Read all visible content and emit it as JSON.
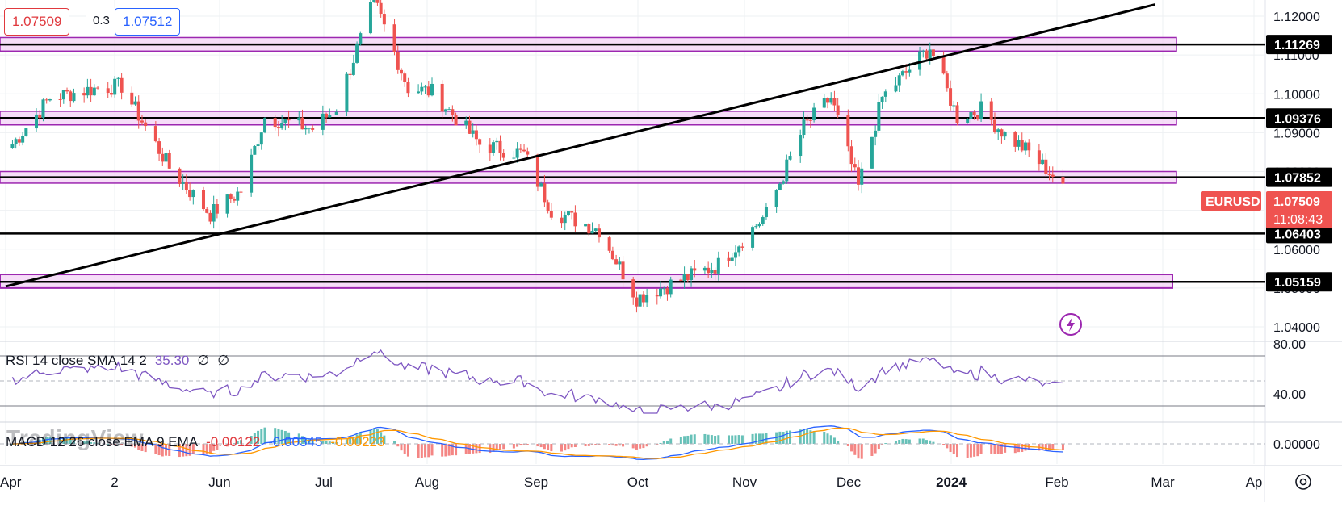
{
  "header": {
    "bid": "1.07509",
    "spread": "0.3",
    "ask": "1.07512"
  },
  "watermark": "TradingView",
  "symbol_tag": "EURUSD",
  "last_price": "1.07509",
  "countdown": "11:08:43",
  "rsi_legend": {
    "name": "RSI 14 close SMA 14 2",
    "value": "35.30",
    "extra1": "∅",
    "extra2": "∅"
  },
  "macd_legend": {
    "name": "MACD 12 26 close EMA 9 EMA",
    "hist": "-0.00122",
    "macd": "-0.00345",
    "signal": "-0.00223"
  },
  "colors": {
    "up": "#26a69a",
    "down": "#ef5350",
    "zone_fill": "#f3d2f6",
    "zone_border": "#9c27b0",
    "rsi": "#7e57c2",
    "macd": "#2962ff",
    "signal": "#ff9800",
    "price_tag": "#ef5350"
  },
  "chart_data": {
    "type": "candlestick",
    "symbol": "EURUSD",
    "timeframe": "daily",
    "x_tick_labels": [
      "Apr",
      "2",
      "Jun",
      "Jul",
      "Aug",
      "Sep",
      "Oct",
      "Nov",
      "Dec",
      "2024",
      "Feb",
      "Mar",
      "Ap"
    ],
    "x_range": [
      "2023-04-01",
      "2024-04-01"
    ],
    "y_tick_labels": [
      "1.12000",
      "1.11000",
      "1.10000",
      "1.09000",
      "1.08000",
      "1.07000",
      "1.06000",
      "1.05000",
      "1.04000"
    ],
    "y_range": [
      1.0365,
      1.1275
    ],
    "horizontal_levels": [
      "1.11269",
      "1.09376",
      "1.07852",
      "1.06403",
      "1.05159"
    ],
    "zones": [
      {
        "from": 1.111,
        "to": 1.1145
      },
      {
        "from": 1.092,
        "to": 1.0955
      },
      {
        "from": 1.077,
        "to": 1.08
      },
      {
        "from": 1.05,
        "to": 1.0535
      }
    ],
    "trendline": [
      {
        "date": "2023-04-01",
        "price": 1.0504
      },
      {
        "date": "2024-03-03",
        "price": 1.123
      }
    ],
    "closes": [
      {
        "date": "2023-04-03",
        "value": 1.087
      },
      {
        "date": "2023-04-14",
        "value": 1.099
      },
      {
        "date": "2023-04-28",
        "value": 1.1015
      },
      {
        "date": "2023-05-05",
        "value": 1.102
      },
      {
        "date": "2023-05-12",
        "value": 1.0915
      },
      {
        "date": "2023-05-19",
        "value": 1.081
      },
      {
        "date": "2023-05-31",
        "value": 1.069
      },
      {
        "date": "2023-06-09",
        "value": 1.075
      },
      {
        "date": "2023-06-16",
        "value": 1.094
      },
      {
        "date": "2023-06-30",
        "value": 1.091
      },
      {
        "date": "2023-07-07",
        "value": 1.0965
      },
      {
        "date": "2023-07-18",
        "value": 1.124
      },
      {
        "date": "2023-07-28",
        "value": 1.1015
      },
      {
        "date": "2023-08-04",
        "value": 1.1005
      },
      {
        "date": "2023-08-18",
        "value": 1.087
      },
      {
        "date": "2023-08-31",
        "value": 1.0845
      },
      {
        "date": "2023-09-08",
        "value": 1.07
      },
      {
        "date": "2023-09-22",
        "value": 1.065
      },
      {
        "date": "2023-10-03",
        "value": 1.0475
      },
      {
        "date": "2023-10-13",
        "value": 1.051
      },
      {
        "date": "2023-10-27",
        "value": 1.056
      },
      {
        "date": "2023-11-10",
        "value": 1.069
      },
      {
        "date": "2023-11-21",
        "value": 1.0915
      },
      {
        "date": "2023-11-29",
        "value": 1.099
      },
      {
        "date": "2023-12-07",
        "value": 1.076
      },
      {
        "date": "2023-12-14",
        "value": 1.099
      },
      {
        "date": "2023-12-28",
        "value": 1.112
      },
      {
        "date": "2024-01-05",
        "value": 1.094
      },
      {
        "date": "2024-01-12",
        "value": 1.096
      },
      {
        "date": "2024-01-19",
        "value": 1.0895
      },
      {
        "date": "2024-01-26",
        "value": 1.085
      },
      {
        "date": "2024-02-02",
        "value": 1.079
      },
      {
        "date": "2024-02-05",
        "value": 1.0751
      }
    ],
    "rsi": {
      "y_tick_labels": [
        "80.00",
        "40.00"
      ],
      "range": [
        20,
        80
      ],
      "bands": [
        70,
        30
      ],
      "midline": 50
    },
    "macd": {
      "y_tick_labels": [
        "0.00000"
      ],
      "range": [
        -0.012,
        0.012
      ]
    }
  }
}
